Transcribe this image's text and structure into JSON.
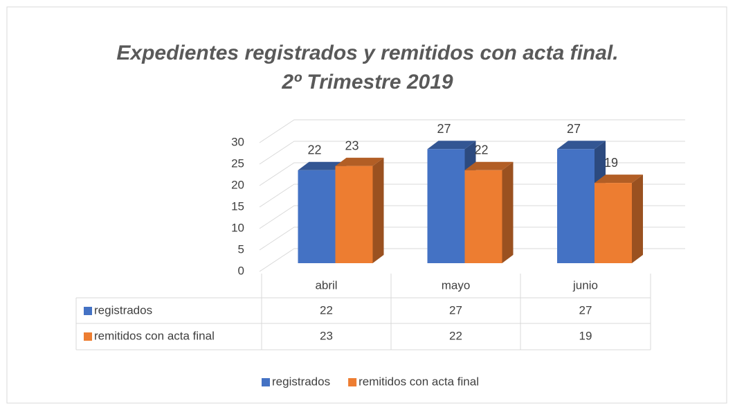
{
  "chart_data": {
    "type": "bar3d",
    "title": [
      "Expedientes registrados y remitidos con acta final.",
      "2º Trimestre 2019"
    ],
    "categories": [
      "abril",
      "mayo",
      "junio"
    ],
    "series": [
      {
        "name": "registrados",
        "color": "#4472c4",
        "values": [
          22,
          27,
          27
        ]
      },
      {
        "name": "remitidos con acta final",
        "color": "#ed7d31",
        "values": [
          23,
          22,
          19
        ]
      }
    ],
    "ylim": [
      0,
      30
    ],
    "yticks": [
      0,
      5,
      10,
      15,
      20,
      25,
      30
    ],
    "grid": true,
    "legend": "bottom",
    "data_table": true
  }
}
